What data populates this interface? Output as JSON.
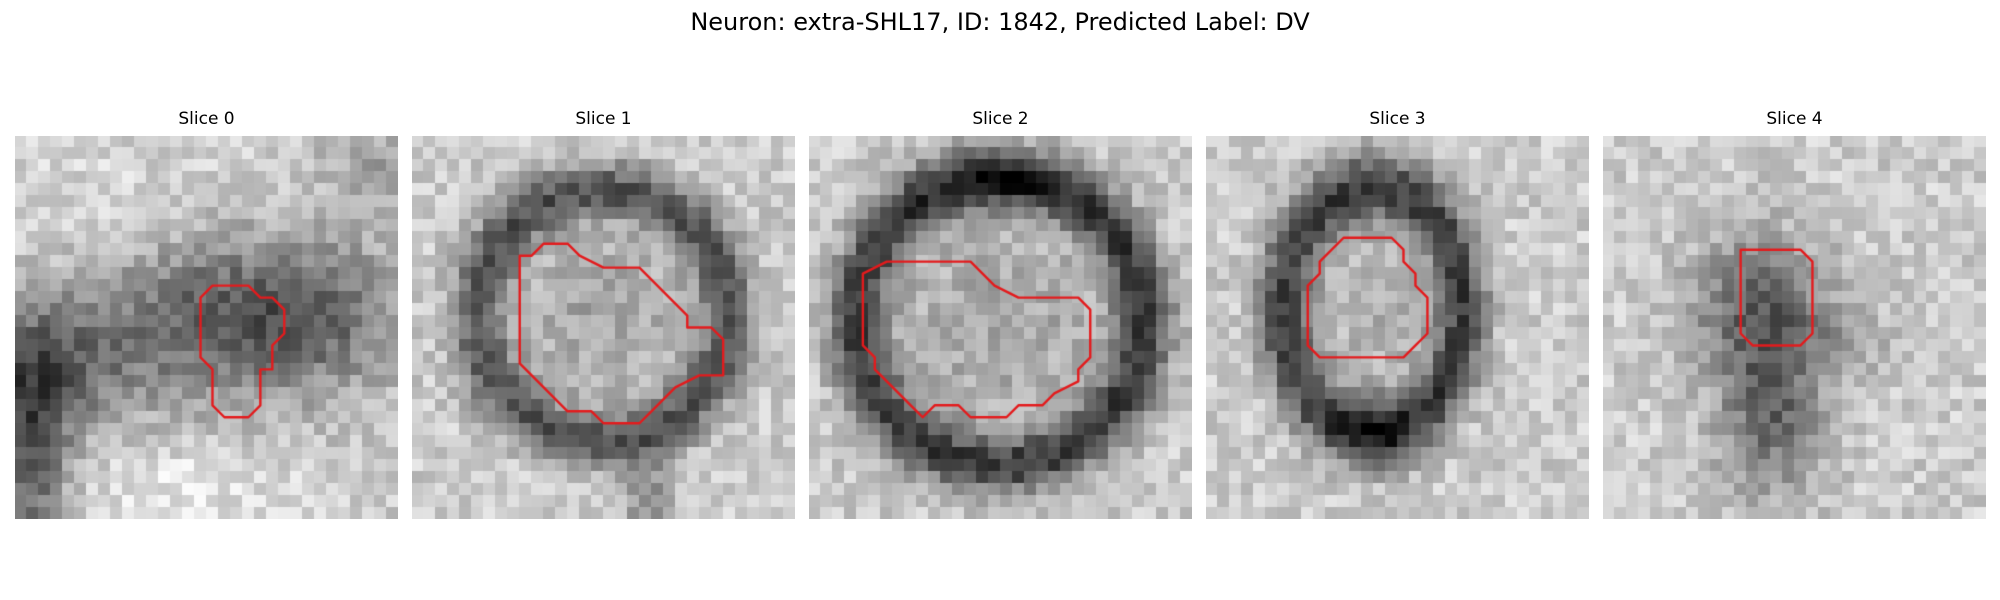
{
  "figure": {
    "title": "Neuron: extra-SHL17, ID: 1842, Predicted Label: DV"
  },
  "panels": [
    {
      "title": "Slice 0"
    },
    {
      "title": "Slice 1"
    },
    {
      "title": "Slice 2"
    },
    {
      "title": "Slice 3"
    },
    {
      "title": "Slice 4"
    }
  ],
  "colors": {
    "contour": "#e31a1c",
    "background": "#ffffff"
  }
}
